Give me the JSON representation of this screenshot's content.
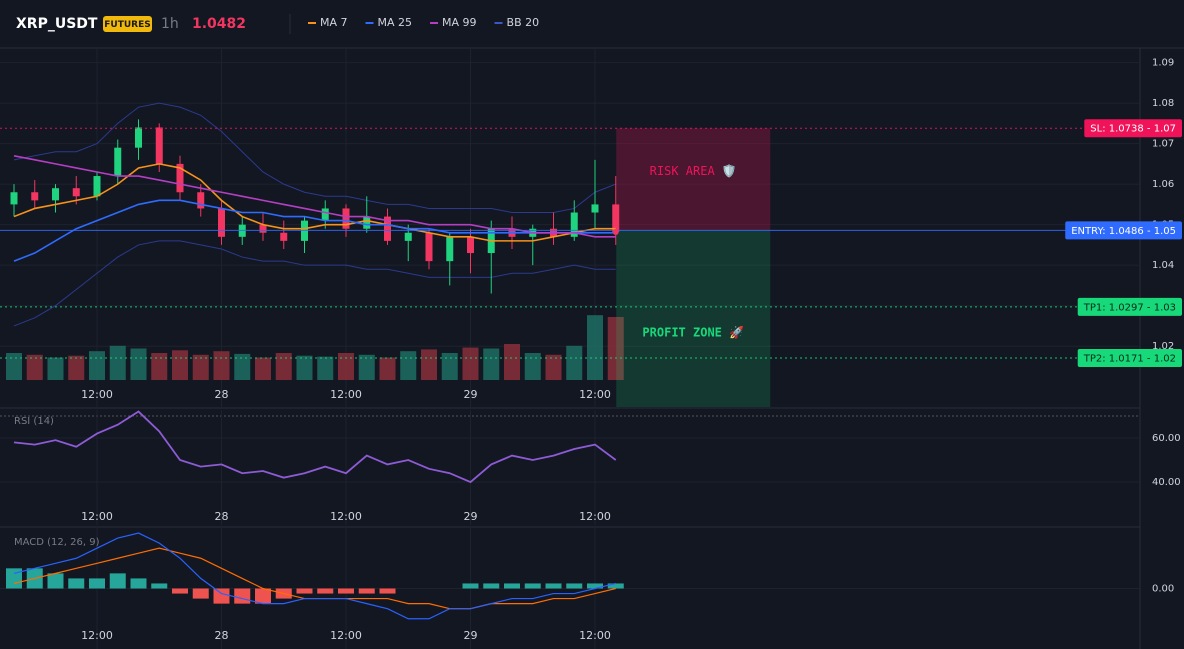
{
  "header": {
    "symbol": "XRP_USDT",
    "badge": "FUTURES",
    "interval": "1h",
    "price": "1.0482"
  },
  "chart_data": [
    {
      "type": "candlestick",
      "categories": [
        null,
        null,
        null,
        null,
        "12:00",
        null,
        null,
        null,
        null,
        null,
        "28",
        null,
        null,
        null,
        null,
        null,
        "12:00",
        null,
        null,
        null,
        null,
        null,
        "29",
        null,
        null,
        null,
        null,
        null,
        "12:00",
        null
      ],
      "open": [
        1.055,
        1.058,
        1.056,
        1.059,
        1.057,
        1.062,
        1.069,
        1.074,
        1.065,
        1.058,
        1.054,
        1.047,
        1.05,
        1.048,
        1.046,
        1.051,
        1.054,
        1.049,
        1.052,
        1.046,
        1.048,
        1.041,
        1.047,
        1.043,
        1.049,
        1.047,
        1.049,
        1.047,
        1.053,
        1.055
      ],
      "high": [
        1.06,
        1.061,
        1.06,
        1.062,
        1.063,
        1.071,
        1.076,
        1.075,
        1.067,
        1.06,
        1.056,
        1.052,
        1.053,
        1.051,
        1.052,
        1.056,
        1.055,
        1.057,
        1.054,
        1.05,
        1.049,
        1.048,
        1.049,
        1.051,
        1.052,
        1.05,
        1.053,
        1.056,
        1.066,
        1.062
      ],
      "low": [
        1.052,
        1.054,
        1.053,
        1.055,
        1.056,
        1.06,
        1.066,
        1.063,
        1.056,
        1.052,
        1.045,
        1.045,
        1.046,
        1.044,
        1.043,
        1.049,
        1.047,
        1.048,
        1.045,
        1.041,
        1.039,
        1.035,
        1.038,
        1.033,
        1.044,
        1.04,
        1.045,
        1.046,
        1.049,
        1.045
      ],
      "close": [
        1.058,
        1.056,
        1.059,
        1.057,
        1.062,
        1.069,
        1.074,
        1.065,
        1.058,
        1.054,
        1.047,
        1.05,
        1.048,
        1.046,
        1.051,
        1.054,
        1.049,
        1.052,
        1.046,
        1.048,
        1.041,
        1.047,
        1.043,
        1.049,
        1.047,
        1.049,
        1.047,
        1.053,
        1.055,
        1.0482
      ],
      "volume": [
        30,
        28,
        25,
        27,
        32,
        38,
        35,
        30,
        33,
        28,
        32,
        29,
        25,
        30,
        27,
        26,
        30,
        28,
        25,
        32,
        34,
        30,
        36,
        35,
        40,
        30,
        28,
        38,
        72,
        70
      ],
      "series": [
        {
          "name": "MA 7",
          "color": "#f7931a",
          "values": [
            1.052,
            1.054,
            1.055,
            1.056,
            1.057,
            1.06,
            1.064,
            1.065,
            1.064,
            1.061,
            1.056,
            1.052,
            1.05,
            1.049,
            1.049,
            1.05,
            1.05,
            1.051,
            1.05,
            1.049,
            1.048,
            1.047,
            1.047,
            1.046,
            1.046,
            1.046,
            1.047,
            1.048,
            1.049,
            1.049
          ]
        },
        {
          "name": "MA 25",
          "color": "#2f6bff",
          "values": [
            1.041,
            1.043,
            1.046,
            1.049,
            1.051,
            1.053,
            1.055,
            1.056,
            1.056,
            1.055,
            1.054,
            1.053,
            1.053,
            1.052,
            1.052,
            1.051,
            1.051,
            1.05,
            1.05,
            1.049,
            1.049,
            1.048,
            1.048,
            1.048,
            1.048,
            1.048,
            1.048,
            1.048,
            1.048,
            1.048
          ]
        },
        {
          "name": "MA 99",
          "color": "#b43fc4",
          "values": [
            1.067,
            1.066,
            1.065,
            1.064,
            1.063,
            1.062,
            1.062,
            1.061,
            1.06,
            1.059,
            1.058,
            1.057,
            1.056,
            1.055,
            1.054,
            1.053,
            1.052,
            1.052,
            1.051,
            1.051,
            1.05,
            1.05,
            1.05,
            1.049,
            1.049,
            1.048,
            1.048,
            1.048,
            1.047,
            1.047
          ]
        },
        {
          "name": "BB 20",
          "color": "#2b3a8f",
          "upper": [
            1.066,
            1.067,
            1.068,
            1.068,
            1.07,
            1.075,
            1.079,
            1.08,
            1.079,
            1.077,
            1.073,
            1.068,
            1.063,
            1.06,
            1.058,
            1.057,
            1.057,
            1.056,
            1.055,
            1.055,
            1.054,
            1.054,
            1.054,
            1.054,
            1.053,
            1.053,
            1.053,
            1.054,
            1.058,
            1.06
          ],
          "lower": [
            1.025,
            1.027,
            1.03,
            1.034,
            1.038,
            1.042,
            1.045,
            1.046,
            1.046,
            1.045,
            1.044,
            1.042,
            1.041,
            1.041,
            1.04,
            1.04,
            1.04,
            1.039,
            1.039,
            1.038,
            1.037,
            1.037,
            1.037,
            1.037,
            1.038,
            1.038,
            1.039,
            1.04,
            1.039,
            1.039
          ]
        }
      ],
      "up_color": "#1fd37f",
      "down_color": "#f23661",
      "ylim": [
        1.005,
        1.0936
      ],
      "yticks": [
        1.02,
        1.03,
        1.04,
        1.05,
        1.06,
        1.07,
        1.08,
        1.09
      ],
      "levels": [
        {
          "name": "SL",
          "value": 1.0738,
          "label": "SL: 1.0738 - 1.07",
          "color": "#f0135a"
        },
        {
          "name": "ENTRY",
          "value": 1.0486,
          "label": "ENTRY: 1.0486 - 1.05",
          "color": "#2f6bff"
        },
        {
          "name": "TP1",
          "value": 1.0297,
          "label": "TP1: 1.0297 - 1.03",
          "color": "#17d97a"
        },
        {
          "name": "TP2",
          "value": 1.0171,
          "label": "TP2: 1.0171 - 1.02",
          "color": "#17d97a"
        }
      ],
      "zones": [
        {
          "label": "RISK AREA 🛡️",
          "color": "#f0135a"
        },
        {
          "label": "PROFIT ZONE 🚀",
          "color": "#17d97a"
        }
      ]
    },
    {
      "type": "line",
      "title": "RSI (14)",
      "categories": [
        null,
        null,
        null,
        null,
        "12:00",
        null,
        null,
        null,
        null,
        null,
        "28",
        null,
        null,
        null,
        null,
        null,
        "12:00",
        null,
        null,
        null,
        null,
        null,
        "29",
        null,
        null,
        null,
        null,
        null,
        "12:00",
        null
      ],
      "values": [
        58,
        57,
        59,
        56,
        62,
        66,
        72,
        63,
        50,
        47,
        48,
        44,
        45,
        42,
        44,
        47,
        44,
        52,
        48,
        50,
        46,
        44,
        40,
        48,
        52,
        50,
        52,
        55,
        57,
        50
      ],
      "color": "#8e5bd6",
      "ylim": [
        20.5,
        72.7
      ],
      "yticks": [
        {
          "value": 40,
          "label": "40.00"
        },
        {
          "value": 60,
          "label": "60.00"
        }
      ]
    },
    {
      "type": "macd",
      "title": "MACD (12, 26, 9)",
      "categories": [
        null,
        null,
        null,
        null,
        "12:00",
        null,
        null,
        null,
        null,
        null,
        "28",
        null,
        null,
        null,
        null,
        null,
        "12:00",
        null,
        null,
        null,
        null,
        null,
        "29",
        null,
        null,
        null,
        null,
        null,
        "12:00",
        null
      ],
      "macd": [
        0.0003,
        0.0004,
        0.0005,
        0.0006,
        0.0008,
        0.001,
        0.0011,
        0.0009,
        0.0006,
        0.0002,
        -0.0001,
        -0.0002,
        -0.0003,
        -0.0003,
        -0.0002,
        -0.0002,
        -0.0002,
        -0.0003,
        -0.0004,
        -0.0006,
        -0.0006,
        -0.0004,
        -0.0004,
        -0.0003,
        -0.0002,
        -0.0002,
        -0.0001,
        -0.0001,
        0.0,
        0.0001
      ],
      "signal": [
        0.0001,
        0.0002,
        0.0003,
        0.0004,
        0.0005,
        0.0006,
        0.0007,
        0.0008,
        0.0007,
        0.0006,
        0.0004,
        0.0002,
        0.0,
        -0.0001,
        -0.0002,
        -0.0002,
        -0.0002,
        -0.0002,
        -0.0002,
        -0.0003,
        -0.0003,
        -0.0004,
        -0.0004,
        -0.0003,
        -0.0003,
        -0.0003,
        -0.0002,
        -0.0002,
        -0.0001,
        0.0
      ],
      "histogram": [
        0.0004,
        0.0004,
        0.0003,
        0.0002,
        0.0002,
        0.0003,
        0.0002,
        0.0001,
        -0.0001,
        -0.0002,
        -0.0003,
        -0.0003,
        -0.0003,
        -0.0002,
        -0.0001,
        -0.0001,
        -0.0001,
        -0.0001,
        -0.0001,
        0.0,
        0.0,
        0.0,
        0.0001,
        0.0001,
        0.0001,
        0.0001,
        0.0001,
        0.0001,
        0.0001,
        0.0001
      ],
      "macd_color": "#2962ff",
      "signal_color": "#ff6d00",
      "up_color": "#26a69a",
      "down_color": "#ef5350",
      "ylim": [
        -0.0012,
        0.0012
      ],
      "yticks": [
        {
          "value": 0,
          "label": "0.00"
        }
      ]
    }
  ]
}
